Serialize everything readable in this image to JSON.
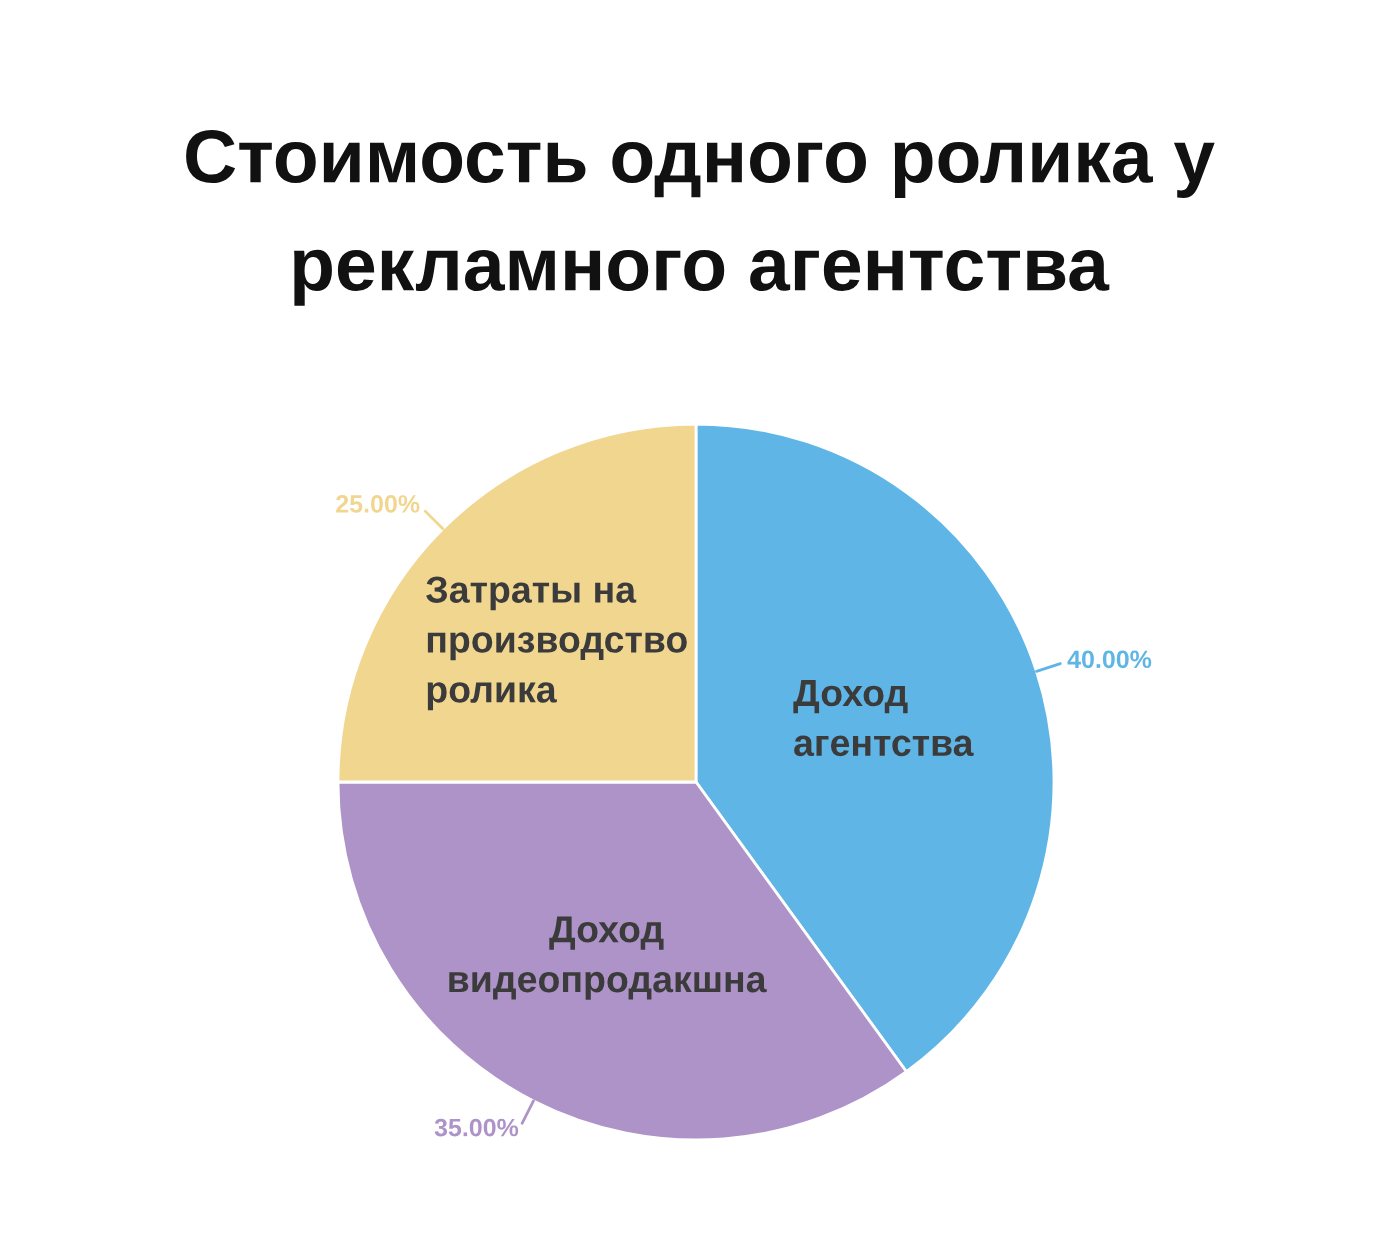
{
  "chart_data": {
    "type": "pie",
    "title": "Стоимость одного ролика у\nрекламного агентства",
    "categories": [
      "Доход\nагентства",
      "Доход\nвидеопродакшна",
      "Затраты на\nпроизводство\nролика"
    ],
    "values": [
      40,
      35,
      25
    ],
    "colors": [
      "#5fb6e6",
      "#ad93c8",
      "#f1d690"
    ],
    "value_labels": [
      "40.00%",
      "35.00%",
      "25.00%"
    ]
  }
}
